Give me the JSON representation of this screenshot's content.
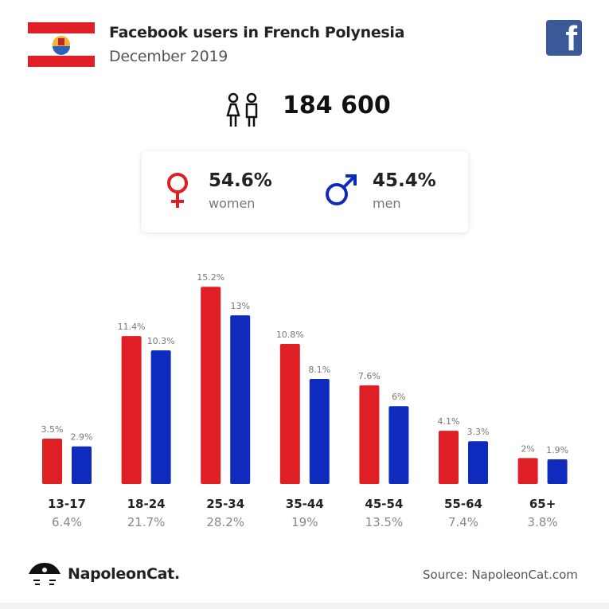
{
  "header": {
    "title": "Facebook users in French Polynesia",
    "subtitle": "December 2019"
  },
  "summary": {
    "total_users": "184 600",
    "women_pct": "54.6%",
    "women_label": "women",
    "men_pct": "45.4%",
    "men_label": "men"
  },
  "colors": {
    "women": "#e01e26",
    "men": "#0f2bbd",
    "facebook": "#3b5998"
  },
  "icons": [
    "french-polynesia-flag-icon",
    "facebook-icon",
    "people-icon",
    "female-icon",
    "male-icon",
    "napoleoncat-logo-icon"
  ],
  "chart_data": {
    "type": "bar",
    "categories": [
      "13-17",
      "18-24",
      "25-34",
      "35-44",
      "45-54",
      "55-64",
      "65+"
    ],
    "category_totals": [
      "6.4%",
      "21.7%",
      "28.2%",
      "19%",
      "13.5%",
      "7.4%",
      "3.8%"
    ],
    "series": [
      {
        "name": "women",
        "values": [
          3.5,
          11.4,
          15.2,
          10.8,
          7.6,
          4.1,
          2
        ],
        "labels": [
          "3.5%",
          "11.4%",
          "15.2%",
          "10.8%",
          "7.6%",
          "4.1%",
          "2%"
        ]
      },
      {
        "name": "men",
        "values": [
          2.9,
          10.3,
          13,
          8.1,
          6,
          3.3,
          1.9
        ],
        "labels": [
          "2.9%",
          "10.3%",
          "13%",
          "8.1%",
          "6%",
          "3.3%",
          "1.9%"
        ]
      }
    ],
    "ylim": [
      0,
      16
    ],
    "grid": false
  },
  "footer": {
    "brand": "NapoleonCat.",
    "source": "Source: NapoleonCat.com"
  }
}
